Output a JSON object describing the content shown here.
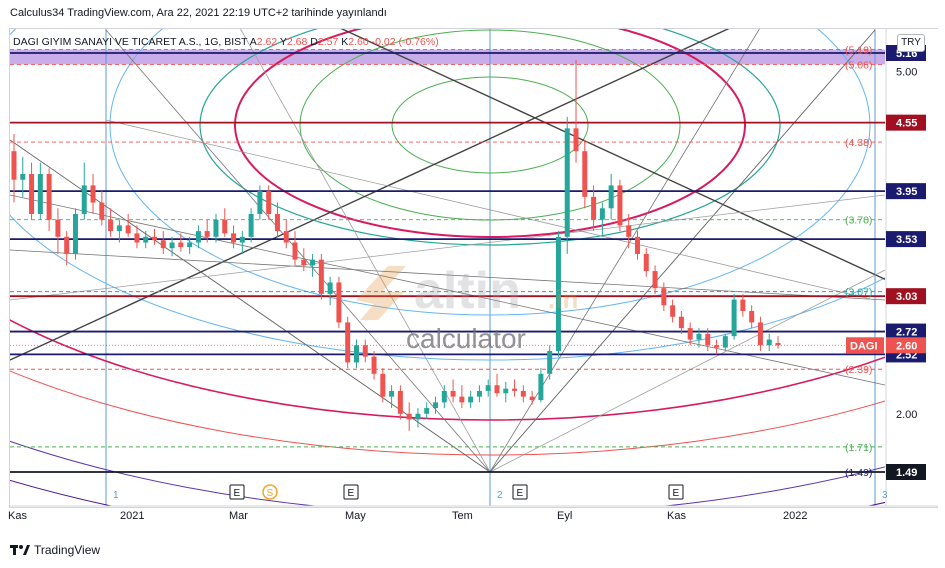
{
  "header": {
    "publisher": "Calculus34 TradingView.com, Ara 22, 2021 22:19 UTC+2 tarihinde yayınlandı"
  },
  "legend": {
    "symbol": "DAGI GIYIM SANAYI VE TICARET A.S., 1G, BIST",
    "open_label": "A",
    "open": "2.62",
    "high_label": "Y",
    "high": "2.68",
    "low_label": "D",
    "low": "2.57",
    "close_label": "K",
    "close": "2.60",
    "change": "-0.02 (-0.76%)"
  },
  "currency": "TRY",
  "footer": {
    "brand": "TradingView"
  },
  "watermark": {
    "main": "altin",
    "suffix": ".in",
    "sub": "calculator"
  },
  "colors": {
    "up": "#26a69a",
    "down": "#ef5350",
    "navy": "#1a1a6e",
    "darkred": "#a01020",
    "crimson": "#d81b60",
    "green_circle": "#4caf50",
    "teal": "#26a69a",
    "sky": "#64b5f6",
    "gray_line": "#787b86",
    "price_tag": "#ef5350",
    "band": "#9c6ad6"
  },
  "chart_data": {
    "type": "candlestick",
    "x_ticks": [
      "Kas",
      "2021",
      "Mar",
      "May",
      "Tem",
      "Eyl",
      "Kas",
      "2022"
    ],
    "y_ticks": [
      2.0,
      5.0
    ],
    "ylim": [
      1.43,
      5.3
    ],
    "last_price": {
      "label": "DAGI",
      "value": "2.60"
    },
    "horizontal_levels": [
      {
        "value": 5.16,
        "label": "5.16",
        "color": "#1a1a6e"
      },
      {
        "value": 4.55,
        "label": "4.55",
        "color": "#a01020"
      },
      {
        "value": 3.95,
        "label": "3.95",
        "color": "#1a1a6e"
      },
      {
        "value": 3.53,
        "label": "3.53",
        "color": "#1a1a6e"
      },
      {
        "value": 3.03,
        "label": "3.03",
        "color": "#a01020"
      },
      {
        "value": 2.72,
        "label": "2.72",
        "color": "#1a1a6e"
      },
      {
        "value": 2.52,
        "label": "2.52",
        "color": "#1a1a6e"
      },
      {
        "value": 1.49,
        "label": "1.49",
        "color": "#131722"
      }
    ],
    "fib_levels": [
      {
        "value": 5.19,
        "label": "(5.19)",
        "color": "#ef5350"
      },
      {
        "value": 5.06,
        "label": "(5.06)",
        "color": "#ef5350"
      },
      {
        "value": 4.38,
        "label": "(4.38)",
        "color": "#ef5350"
      },
      {
        "value": 3.7,
        "label": "(3.70)",
        "color": "#4caf50"
      },
      {
        "value": 3.07,
        "label": "(3.07)",
        "color": "#26a69a"
      },
      {
        "value": 2.39,
        "label": "(2.39)",
        "color": "#ef5350"
      },
      {
        "value": 1.71,
        "label": "(1.71)",
        "color": "#4caf50"
      },
      {
        "value": 1.49,
        "label": "(1.49)",
        "color": "#1a1a6e"
      }
    ],
    "cycle_markers": [
      "1",
      "2",
      "3"
    ],
    "event_markers": [
      "E",
      "S",
      "E",
      "E",
      "E"
    ],
    "series": [
      {
        "name": "DAGI",
        "values": [
          [
            4.3,
            4.45,
            3.85,
            4.05
          ],
          [
            4.05,
            4.25,
            3.9,
            4.1
          ],
          [
            4.1,
            4.2,
            3.7,
            3.75
          ],
          [
            3.75,
            4.2,
            3.7,
            4.1
          ],
          [
            4.1,
            4.15,
            3.6,
            3.7
          ],
          [
            3.7,
            3.8,
            3.4,
            3.55
          ],
          [
            3.55,
            3.6,
            3.3,
            3.4
          ],
          [
            3.4,
            3.8,
            3.35,
            3.75
          ],
          [
            3.75,
            4.2,
            3.7,
            4.0
          ],
          [
            4.0,
            4.1,
            3.75,
            3.85
          ],
          [
            3.85,
            3.95,
            3.65,
            3.7
          ],
          [
            3.7,
            3.8,
            3.55,
            3.6
          ],
          [
            3.6,
            3.7,
            3.5,
            3.65
          ],
          [
            3.65,
            3.75,
            3.55,
            3.58
          ],
          [
            3.58,
            3.65,
            3.45,
            3.5
          ],
          [
            3.5,
            3.6,
            3.45,
            3.55
          ],
          [
            3.55,
            3.62,
            3.48,
            3.52
          ],
          [
            3.52,
            3.6,
            3.4,
            3.45
          ],
          [
            3.45,
            3.55,
            3.38,
            3.5
          ],
          [
            3.5,
            3.58,
            3.42,
            3.46
          ],
          [
            3.46,
            3.55,
            3.4,
            3.5
          ],
          [
            3.5,
            3.65,
            3.45,
            3.6
          ],
          [
            3.6,
            3.7,
            3.5,
            3.55
          ],
          [
            3.55,
            3.75,
            3.5,
            3.7
          ],
          [
            3.7,
            3.8,
            3.55,
            3.58
          ],
          [
            3.58,
            3.65,
            3.45,
            3.5
          ],
          [
            3.5,
            3.6,
            3.4,
            3.55
          ],
          [
            3.55,
            3.8,
            3.5,
            3.75
          ],
          [
            3.75,
            4.0,
            3.7,
            3.95
          ],
          [
            3.95,
            4.0,
            3.7,
            3.75
          ],
          [
            3.75,
            3.85,
            3.55,
            3.6
          ],
          [
            3.6,
            3.7,
            3.45,
            3.5
          ],
          [
            3.5,
            3.6,
            3.3,
            3.35
          ],
          [
            3.35,
            3.45,
            3.25,
            3.3
          ],
          [
            3.3,
            3.4,
            3.2,
            3.35
          ],
          [
            3.35,
            3.4,
            3.0,
            3.05
          ],
          [
            3.05,
            3.2,
            2.95,
            3.15
          ],
          [
            3.15,
            3.2,
            2.75,
            2.8
          ],
          [
            2.8,
            2.85,
            2.4,
            2.45
          ],
          [
            2.45,
            2.65,
            2.4,
            2.6
          ],
          [
            2.6,
            2.65,
            2.45,
            2.5
          ],
          [
            2.5,
            2.55,
            2.3,
            2.35
          ],
          [
            2.35,
            2.4,
            2.1,
            2.15
          ],
          [
            2.15,
            2.25,
            2.05,
            2.2
          ],
          [
            2.2,
            2.25,
            1.95,
            2.0
          ],
          [
            2.0,
            2.1,
            1.85,
            1.95
          ],
          [
            1.95,
            2.05,
            1.88,
            2.0
          ],
          [
            2.0,
            2.1,
            1.95,
            2.05
          ],
          [
            2.05,
            2.15,
            2.0,
            2.1
          ],
          [
            2.1,
            2.25,
            2.05,
            2.2
          ],
          [
            2.2,
            2.3,
            2.1,
            2.15
          ],
          [
            2.15,
            2.25,
            2.05,
            2.1
          ],
          [
            2.1,
            2.2,
            2.05,
            2.15
          ],
          [
            2.15,
            2.25,
            2.1,
            2.2
          ],
          [
            2.2,
            2.3,
            2.15,
            2.25
          ],
          [
            2.25,
            2.35,
            2.15,
            2.18
          ],
          [
            2.18,
            2.28,
            2.1,
            2.22
          ],
          [
            2.22,
            2.3,
            2.15,
            2.2
          ],
          [
            2.2,
            2.25,
            2.1,
            2.15
          ],
          [
            2.15,
            2.2,
            2.08,
            2.12
          ],
          [
            2.12,
            2.4,
            2.1,
            2.35
          ],
          [
            2.35,
            2.6,
            2.3,
            2.55
          ],
          [
            2.55,
            3.6,
            2.5,
            3.55
          ],
          [
            3.55,
            4.6,
            3.4,
            4.5
          ],
          [
            4.5,
            5.1,
            4.2,
            4.3
          ],
          [
            4.3,
            4.4,
            3.8,
            3.9
          ],
          [
            3.9,
            4.0,
            3.6,
            3.7
          ],
          [
            3.7,
            3.85,
            3.55,
            3.8
          ],
          [
            3.8,
            4.1,
            3.7,
            4.0
          ],
          [
            4.0,
            4.05,
            3.6,
            3.65
          ],
          [
            3.65,
            3.75,
            3.45,
            3.55
          ],
          [
            3.55,
            3.6,
            3.35,
            3.4
          ],
          [
            3.4,
            3.45,
            3.2,
            3.25
          ],
          [
            3.25,
            3.3,
            3.05,
            3.1
          ],
          [
            3.1,
            3.15,
            2.9,
            2.95
          ],
          [
            2.95,
            3.0,
            2.8,
            2.85
          ],
          [
            2.85,
            2.9,
            2.7,
            2.75
          ],
          [
            2.75,
            2.8,
            2.6,
            2.65
          ],
          [
            2.65,
            2.75,
            2.58,
            2.7
          ],
          [
            2.7,
            2.75,
            2.55,
            2.6
          ],
          [
            2.6,
            2.65,
            2.52,
            2.58
          ],
          [
            2.58,
            2.7,
            2.55,
            2.68
          ],
          [
            2.68,
            3.05,
            2.65,
            3.0
          ],
          [
            3.0,
            3.05,
            2.85,
            2.9
          ],
          [
            2.9,
            2.95,
            2.75,
            2.8
          ],
          [
            2.8,
            2.85,
            2.55,
            2.6
          ],
          [
            2.6,
            2.7,
            2.55,
            2.65
          ],
          [
            2.62,
            2.68,
            2.57,
            2.6
          ]
        ]
      }
    ]
  }
}
